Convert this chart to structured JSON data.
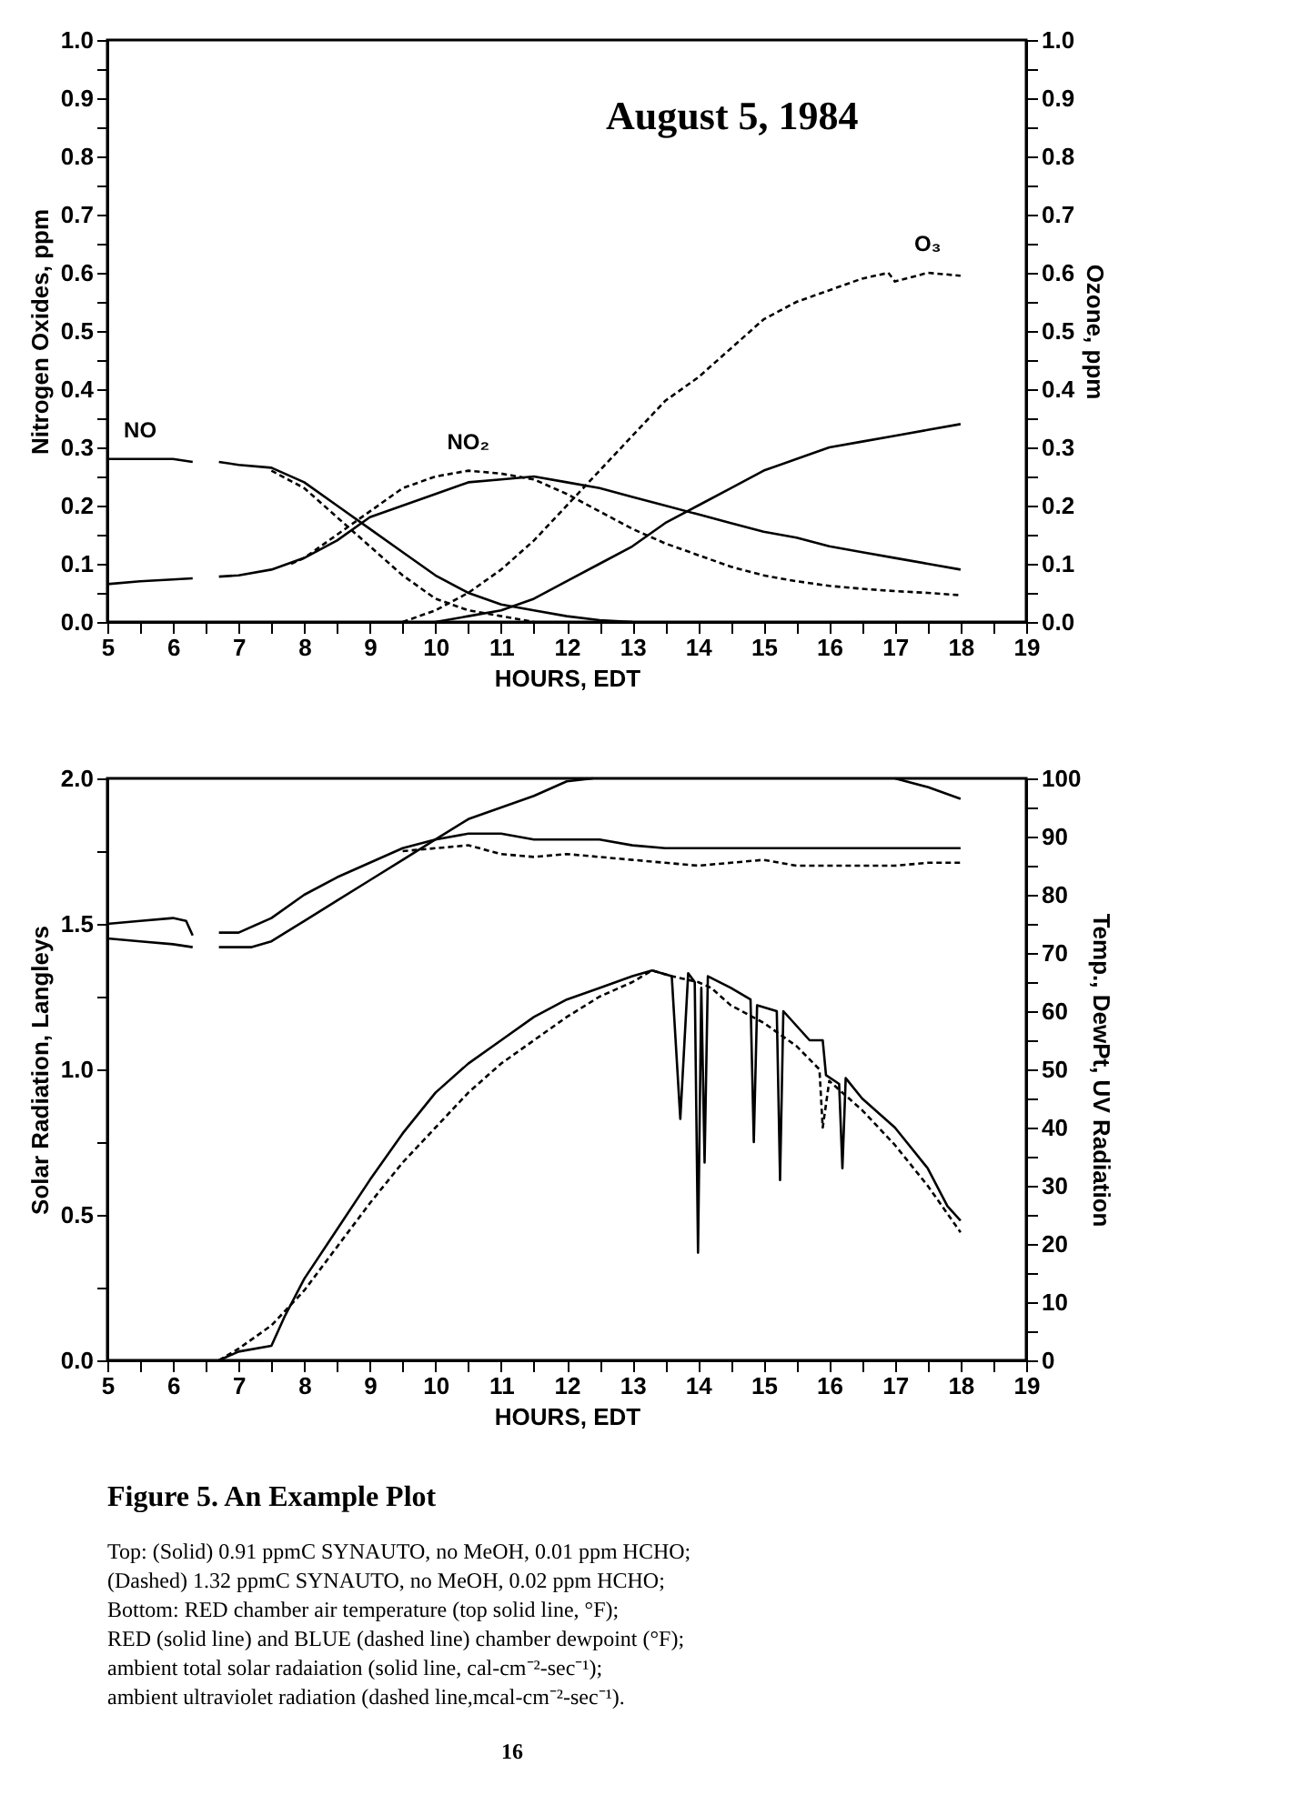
{
  "chart_data": [
    {
      "type": "line",
      "title": "August 5, 1984",
      "xlabel": "HOURS, EDT",
      "ylabel": "Nitrogen Oxides, ppm",
      "y2label": "Ozone, ppm",
      "xlim": [
        5,
        19
      ],
      "xticks": [
        5,
        {
          "value": 5.5,
          "label": null
        },
        6,
        {
          "value": 6.5,
          "label": null
        },
        7,
        {
          "value": 7.5,
          "label": null
        },
        8,
        {
          "value": 8.5,
          "label": null
        },
        9,
        {
          "value": 9.5,
          "label": null
        },
        10,
        {
          "value": 10.5,
          "label": null
        },
        11,
        {
          "value": 11.5,
          "label": null
        },
        12,
        {
          "value": 12.5,
          "label": null
        },
        13,
        {
          "value": 13.5,
          "label": null
        },
        14,
        {
          "value": 14.5,
          "label": null
        },
        15,
        {
          "value": 15.5,
          "label": null
        },
        16,
        {
          "value": 16.5,
          "label": null
        },
        17,
        {
          "value": 17.5,
          "label": null
        },
        18,
        {
          "value": 18.5,
          "label": null
        },
        19
      ],
      "ylim": [
        0,
        1
      ],
      "yticks": [
        {
          "value": 0,
          "label": "0.0"
        },
        {
          "value": 0.05,
          "label": null
        },
        0.1,
        {
          "value": 0.15,
          "label": null
        },
        0.2,
        {
          "value": 0.25,
          "label": null
        },
        0.3,
        {
          "value": 0.35,
          "label": null
        },
        0.4,
        {
          "value": 0.45,
          "label": null
        },
        0.5,
        {
          "value": 0.55,
          "label": null
        },
        0.6,
        {
          "value": 0.65,
          "label": null
        },
        0.7,
        {
          "value": 0.75,
          "label": null
        },
        0.8,
        {
          "value": 0.85,
          "label": null
        },
        0.9,
        {
          "value": 0.95,
          "label": null
        },
        {
          "value": 1,
          "label": "1.0"
        }
      ],
      "y2lim": [
        0,
        1
      ],
      "y2ticks": [
        {
          "value": 0,
          "label": "0.0"
        },
        {
          "value": 0.05,
          "label": null
        },
        0.1,
        {
          "value": 0.15,
          "label": null
        },
        0.2,
        {
          "value": 0.25,
          "label": null
        },
        0.3,
        {
          "value": 0.35,
          "label": null
        },
        0.4,
        {
          "value": 0.45,
          "label": null
        },
        0.5,
        {
          "value": 0.55,
          "label": null
        },
        0.6,
        {
          "value": 0.65,
          "label": null
        },
        0.7,
        {
          "value": 0.75,
          "label": null
        },
        0.8,
        {
          "value": 0.85,
          "label": null
        },
        0.9,
        {
          "value": 0.95,
          "label": null
        },
        {
          "value": 1,
          "label": "1.0"
        }
      ],
      "grid": false,
      "marker": "none",
      "series": [
        {
          "color": "#000000",
          "line_style": "solid",
          "x": [
            5,
            5.5,
            6,
            6.3,
            6.5,
            6.7,
            7,
            7.5,
            8,
            8.5,
            9,
            9.5,
            10,
            10.5,
            11,
            11.5,
            12,
            12.5,
            13
          ],
          "values": [
            0.28,
            0.28,
            0.28,
            0.275,
            null,
            0.275,
            0.27,
            0.265,
            0.24,
            0.2,
            0.16,
            0.12,
            0.08,
            0.05,
            0.03,
            0.02,
            0.01,
            0.003,
            0
          ]
        },
        {
          "color": "#000000",
          "line_style": "dashed",
          "x": [
            7.5,
            8,
            8.5,
            9,
            9.5,
            10,
            10.5,
            11,
            11.5
          ],
          "values": [
            0.26,
            0.23,
            0.18,
            0.13,
            0.08,
            0.04,
            0.02,
            0.01,
            0
          ]
        },
        {
          "color": "#000000",
          "line_style": "solid",
          "x": [
            5,
            5.5,
            6,
            6.3,
            6.5,
            6.7,
            7,
            7.5,
            8,
            8.5,
            9,
            9.5,
            10,
            10.5,
            11,
            11.5,
            12,
            12.5,
            13,
            13.5,
            14,
            14.5,
            15,
            15.5,
            16,
            16.5,
            17,
            17.5,
            18
          ],
          "values": [
            0.065,
            0.07,
            0.073,
            0.075,
            null,
            0.078,
            0.08,
            0.09,
            0.11,
            0.14,
            0.18,
            0.2,
            0.22,
            0.24,
            0.245,
            0.25,
            0.24,
            0.23,
            0.215,
            0.2,
            0.185,
            0.17,
            0.155,
            0.145,
            0.13,
            0.12,
            0.11,
            0.1,
            0.09
          ]
        },
        {
          "color": "#000000",
          "line_style": "dashed",
          "x": [
            7.8,
            8,
            8.5,
            9,
            9.5,
            10,
            10.5,
            11,
            11.5,
            12,
            12.5,
            13,
            13.5,
            14,
            14.5,
            15,
            15.5,
            16,
            16.5,
            17,
            17.5,
            18
          ],
          "values": [
            0.1,
            0.11,
            0.15,
            0.19,
            0.23,
            0.25,
            0.26,
            0.255,
            0.245,
            0.22,
            0.19,
            0.16,
            0.135,
            0.115,
            0.095,
            0.08,
            0.07,
            0.062,
            0.057,
            0.053,
            0.05,
            0.046
          ]
        },
        {
          "color": "#000000",
          "line_style": "solid",
          "axis": "y2",
          "x": [
            10,
            10.5,
            11,
            11.5,
            12,
            12.5,
            13,
            13.5,
            14,
            14.5,
            15,
            15.5,
            16,
            16.5,
            17,
            17.5,
            18
          ],
          "values": [
            0,
            0.01,
            0.02,
            0.04,
            0.07,
            0.1,
            0.13,
            0.17,
            0.2,
            0.23,
            0.26,
            0.28,
            0.3,
            0.31,
            0.32,
            0.33,
            0.34
          ]
        },
        {
          "color": "#000000",
          "line_style": "dashed",
          "axis": "y2",
          "x": [
            9.5,
            10,
            10.5,
            11,
            11.5,
            12,
            12.5,
            13,
            13.5,
            14,
            14.5,
            15,
            15.5,
            16,
            16.5,
            16.9,
            17,
            17.5,
            18
          ],
          "values": [
            0,
            0.02,
            0.05,
            0.09,
            0.14,
            0.2,
            0.26,
            0.32,
            0.38,
            0.42,
            0.47,
            0.52,
            0.55,
            0.57,
            0.59,
            0.6,
            0.585,
            0.6,
            0.595
          ]
        }
      ],
      "annotations": [
        {
          "text": "NO",
          "x": 5.5,
          "y": 0.28
        },
        {
          "text": "NO₂",
          "x": 10.5,
          "y": 0.26
        },
        {
          "text": "O₃",
          "x": 17.5,
          "y": 0.6
        }
      ]
    },
    {
      "type": "line",
      "xlabel": "HOURS, EDT",
      "ylabel": "Solar Radiation, Langleys",
      "y2label": "Temp., DewPt, UV Radiation",
      "xlim": [
        5,
        19
      ],
      "xticks": [
        5,
        {
          "value": 5.5,
          "label": null
        },
        6,
        {
          "value": 6.5,
          "label": null
        },
        7,
        {
          "value": 7.5,
          "label": null
        },
        8,
        {
          "value": 8.5,
          "label": null
        },
        9,
        {
          "value": 9.5,
          "label": null
        },
        10,
        {
          "value": 10.5,
          "label": null
        },
        11,
        {
          "value": 11.5,
          "label": null
        },
        12,
        {
          "value": 12.5,
          "label": null
        },
        13,
        {
          "value": 13.5,
          "label": null
        },
        14,
        {
          "value": 14.5,
          "label": null
        },
        15,
        {
          "value": 15.5,
          "label": null
        },
        16,
        {
          "value": 16.5,
          "label": null
        },
        17,
        {
          "value": 17.5,
          "label": null
        },
        18,
        {
          "value": 18.5,
          "label": null
        },
        19
      ],
      "ylim": [
        0,
        2
      ],
      "yticks": [
        {
          "value": 0,
          "label": "0.0"
        },
        {
          "value": 0.25,
          "label": null
        },
        0.5,
        {
          "value": 0.75,
          "label": null
        },
        {
          "value": 1,
          "label": "1.0"
        },
        {
          "value": 1.25,
          "label": null
        },
        1.5,
        {
          "value": 1.75,
          "label": null
        },
        {
          "value": 2,
          "label": "2.0"
        }
      ],
      "y2lim": [
        0,
        100
      ],
      "y2ticks": [
        0,
        {
          "value": 5,
          "label": null
        },
        10,
        {
          "value": 15,
          "label": null
        },
        20,
        {
          "value": 25,
          "label": null
        },
        30,
        {
          "value": 35,
          "label": null
        },
        40,
        {
          "value": 45,
          "label": null
        },
        50,
        {
          "value": 55,
          "label": null
        },
        60,
        {
          "value": 65,
          "label": null
        },
        70,
        {
          "value": 75,
          "label": null
        },
        80,
        {
          "value": 85,
          "label": null
        },
        90,
        {
          "value": 95,
          "label": null
        },
        100
      ],
      "grid": false,
      "marker": "none",
      "series": [
        {
          "color": "#000000",
          "line_style": "solid",
          "x": [
            6.7,
            7,
            7.5,
            7.7,
            8,
            8.5,
            9,
            9.5,
            10,
            10.5,
            11,
            11.5,
            12,
            12.5,
            13,
            13.3,
            13.6,
            13.73,
            13.85,
            13.95,
            14.0,
            14.05,
            14.1,
            14.15,
            14.5,
            14.8,
            14.85,
            14.9,
            15.2,
            15.25,
            15.3,
            15.7,
            15.9,
            15.95,
            16.15,
            16.2,
            16.25,
            16.5,
            17,
            17.5,
            17.8,
            18
          ],
          "values": [
            0,
            0.03,
            0.05,
            0.15,
            0.28,
            0.45,
            0.62,
            0.78,
            0.92,
            1.02,
            1.1,
            1.18,
            1.24,
            1.28,
            1.32,
            1.34,
            1.32,
            0.83,
            1.33,
            1.3,
            0.37,
            1.28,
            0.68,
            1.32,
            1.28,
            1.24,
            0.75,
            1.22,
            1.2,
            0.62,
            1.2,
            1.1,
            1.1,
            0.98,
            0.95,
            0.66,
            0.97,
            0.9,
            0.8,
            0.66,
            0.53,
            0.48
          ]
        },
        {
          "color": "#000000",
          "line_style": "solid",
          "axis": "y2",
          "x": [
            5,
            5.5,
            6,
            6.3,
            6.5,
            6.7,
            7,
            7.2,
            7.5,
            8,
            8.5,
            9,
            9.5,
            10,
            10.5,
            11,
            11.5,
            12,
            12.4,
            12.5,
            17,
            17.5,
            18
          ],
          "values": [
            72.5,
            72,
            71.5,
            71,
            null,
            71,
            71,
            71,
            72,
            75.5,
            79,
            82.5,
            86,
            89.5,
            93,
            95,
            97,
            99.5,
            100,
            null,
            100,
            98.5,
            96.5
          ]
        },
        {
          "color": "#000000",
          "line_style": "solid",
          "axis": "y2",
          "x": [
            5,
            5.5,
            6,
            6.2,
            6.3,
            6.5,
            6.7,
            7,
            7.5,
            8,
            8.5,
            9,
            9.5,
            10,
            10.5,
            11,
            11.5,
            12,
            12.5,
            13,
            13.5,
            14,
            14.5,
            15,
            15.5,
            16,
            16.5,
            17,
            17.5,
            18
          ],
          "values": [
            75,
            75.5,
            76,
            75.5,
            73,
            null,
            73.5,
            73.5,
            76,
            80,
            83,
            85.5,
            88,
            89.5,
            90.5,
            90.5,
            89.5,
            89.5,
            89.5,
            88.5,
            88,
            88,
            88,
            88,
            88,
            88,
            88,
            88,
            88,
            88
          ]
        },
        {
          "color": "#000000",
          "line_style": "dashed",
          "axis": "y2",
          "x": [
            9.5,
            10,
            10.5,
            11,
            11.5,
            12,
            12.5,
            13,
            13.5,
            14,
            14.5,
            15,
            15.5,
            16,
            16.5,
            17,
            17.5,
            18
          ],
          "values": [
            87.5,
            88,
            88.5,
            87,
            86.5,
            87,
            86.5,
            86,
            85.5,
            85,
            85.5,
            86,
            85,
            85,
            85,
            85,
            85.5,
            85.5
          ]
        },
        {
          "color": "#000000",
          "line_style": "dashed",
          "axis": "y2",
          "x": [
            6.7,
            7,
            7.5,
            8,
            8.5,
            9,
            9.5,
            10,
            10.5,
            11,
            11.5,
            12,
            12.5,
            13,
            13.3,
            13.6,
            14,
            14.2,
            14.5,
            15,
            15.5,
            15.85,
            15.9,
            16,
            16.5,
            17,
            17.5,
            18
          ],
          "values": [
            0,
            2,
            6,
            12,
            19.5,
            27,
            34,
            40,
            46,
            51,
            55,
            59,
            62.5,
            65,
            67,
            66,
            65,
            64,
            61,
            58,
            54,
            50,
            40,
            48,
            43,
            37,
            30,
            22
          ]
        }
      ],
      "annotations": [
        "Figure 5.   An Example Plot",
        "Top: (Solid) 0.91 ppmC SYNAUTO, no MeOH, 0.01 ppm HCHO;",
        "(Dashed) 1.32 ppmC SYNAUTO, no MeOH, 0.02 ppm HCHO;",
        "Bottom: RED chamber air temperature (top solid line, °F);",
        "RED (solid line) and BLUE (dashed line) chamber dewpoint (°F);",
        "ambient total solar radaiation (solid line, cal-cm⁻²-sec⁻¹);",
        "ambient ultraviolet radiation (dashed line,mcal-cm⁻²-sec⁻¹).",
        "16"
      ]
    }
  ]
}
